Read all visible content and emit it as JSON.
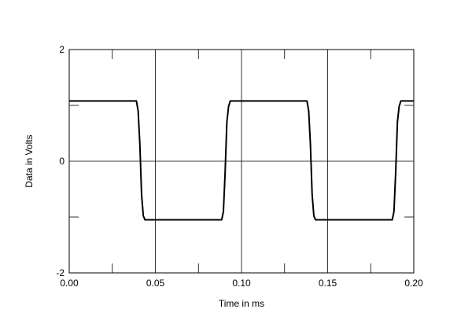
{
  "chart_data": {
    "type": "line",
    "title": "",
    "xlabel": "Time in ms",
    "ylabel": "Data in Volts",
    "xlim": [
      0,
      0.2
    ],
    "ylim": [
      -2,
      2
    ],
    "grid": true,
    "x_ticks": [
      0,
      0.05,
      0.1,
      0.15,
      0.2
    ],
    "x_tick_labels": [
      "0.00",
      "0.05",
      "0.10",
      "0.15",
      "0.20"
    ],
    "y_ticks": [
      -2,
      0,
      2
    ],
    "y_tick_labels": [
      "-2",
      "0",
      "2"
    ],
    "series": [
      {
        "color": "#000000",
        "points": [
          [
            0.0,
            1.08
          ],
          [
            0.039,
            1.08
          ],
          [
            0.04,
            0.9
          ],
          [
            0.041,
            0.3
          ],
          [
            0.042,
            -0.6
          ],
          [
            0.043,
            -0.98
          ],
          [
            0.044,
            -1.05
          ],
          [
            0.0885,
            -1.05
          ],
          [
            0.0895,
            -0.9
          ],
          [
            0.0905,
            -0.2
          ],
          [
            0.0915,
            0.7
          ],
          [
            0.0925,
            0.98
          ],
          [
            0.0935,
            1.08
          ],
          [
            0.138,
            1.08
          ],
          [
            0.139,
            0.9
          ],
          [
            0.14,
            0.3
          ],
          [
            0.141,
            -0.6
          ],
          [
            0.142,
            -0.98
          ],
          [
            0.143,
            -1.05
          ],
          [
            0.1875,
            -1.05
          ],
          [
            0.1885,
            -0.9
          ],
          [
            0.1895,
            -0.2
          ],
          [
            0.1905,
            0.7
          ],
          [
            0.1915,
            0.98
          ],
          [
            0.1925,
            1.08
          ],
          [
            0.2,
            1.08
          ]
        ]
      }
    ]
  }
}
